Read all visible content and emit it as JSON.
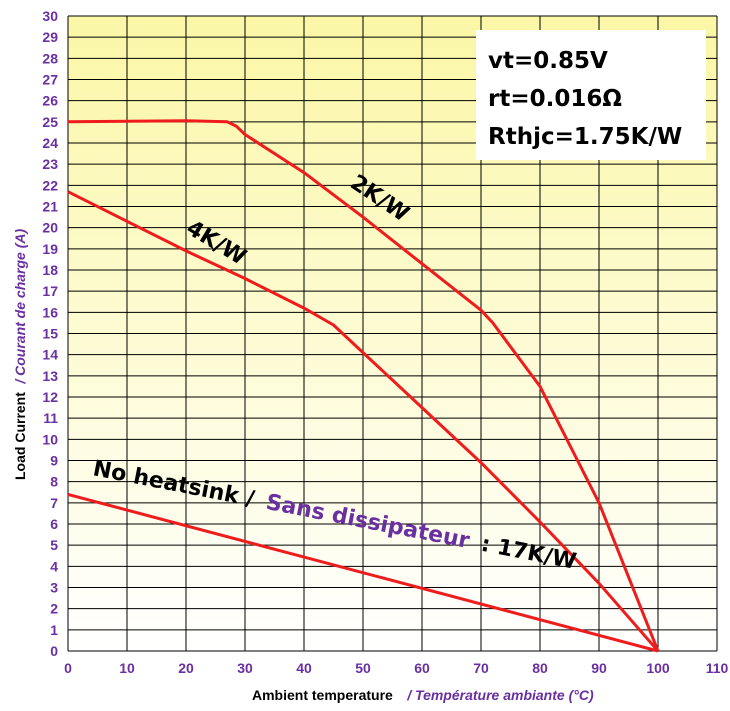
{
  "chart_data": {
    "type": "line",
    "xlabel": "Ambient temperature",
    "xlabel_fr": "/ Température ambiante (°C)",
    "ylabel": "Load Current",
    "ylabel_fr": "/ Courant de charge (A)",
    "xlim": [
      0,
      110
    ],
    "ylim": [
      0,
      30
    ],
    "x_ticks": [
      "0",
      "10",
      "20",
      "30",
      "40",
      "50",
      "60",
      "70",
      "80",
      "90",
      "100",
      "110"
    ],
    "y_ticks": [
      "0",
      "1",
      "2",
      "3",
      "4",
      "5",
      "6",
      "7",
      "8",
      "9",
      "10",
      "11",
      "12",
      "13",
      "14",
      "15",
      "16",
      "17",
      "18",
      "19",
      "20",
      "21",
      "22",
      "23",
      "24",
      "25",
      "26",
      "27",
      "28",
      "29",
      "30"
    ],
    "grid": true,
    "params": [
      "vt=0.85V",
      "rt=0.016Ω",
      "Rthjc=1.75K/W"
    ],
    "series": [
      {
        "name": "2K/W",
        "x": [
          0,
          20,
          27,
          28.5,
          30,
          40,
          50,
          60,
          70,
          72,
          80,
          90,
          100
        ],
        "y": [
          25,
          25.05,
          25,
          24.8,
          24.4,
          22.6,
          20.5,
          18.3,
          16.1,
          15.5,
          12.5,
          7,
          0
        ]
      },
      {
        "name": "4K/W",
        "x": [
          0,
          10,
          20,
          30,
          40,
          45,
          50,
          60,
          70,
          80,
          90,
          100
        ],
        "y": [
          21.7,
          20.3,
          18.9,
          17.6,
          16.2,
          15.4,
          14.1,
          11.5,
          8.9,
          6.1,
          3.2,
          0
        ]
      },
      {
        "name": "No heatsink / Sans dissipateur : 17K/W",
        "x": [
          0,
          100
        ],
        "y": [
          7.4,
          0
        ]
      }
    ],
    "line_color": "#ee1c1c",
    "labels": [
      {
        "series": "4K/W",
        "text": "4K/W"
      },
      {
        "series": "2K/W",
        "text": "2K/W"
      },
      {
        "series": "17K/W",
        "text_en": "No heatsink /",
        "text_fr": "Sans dissipateur",
        "text_suffix": ": 17K/W"
      }
    ]
  }
}
